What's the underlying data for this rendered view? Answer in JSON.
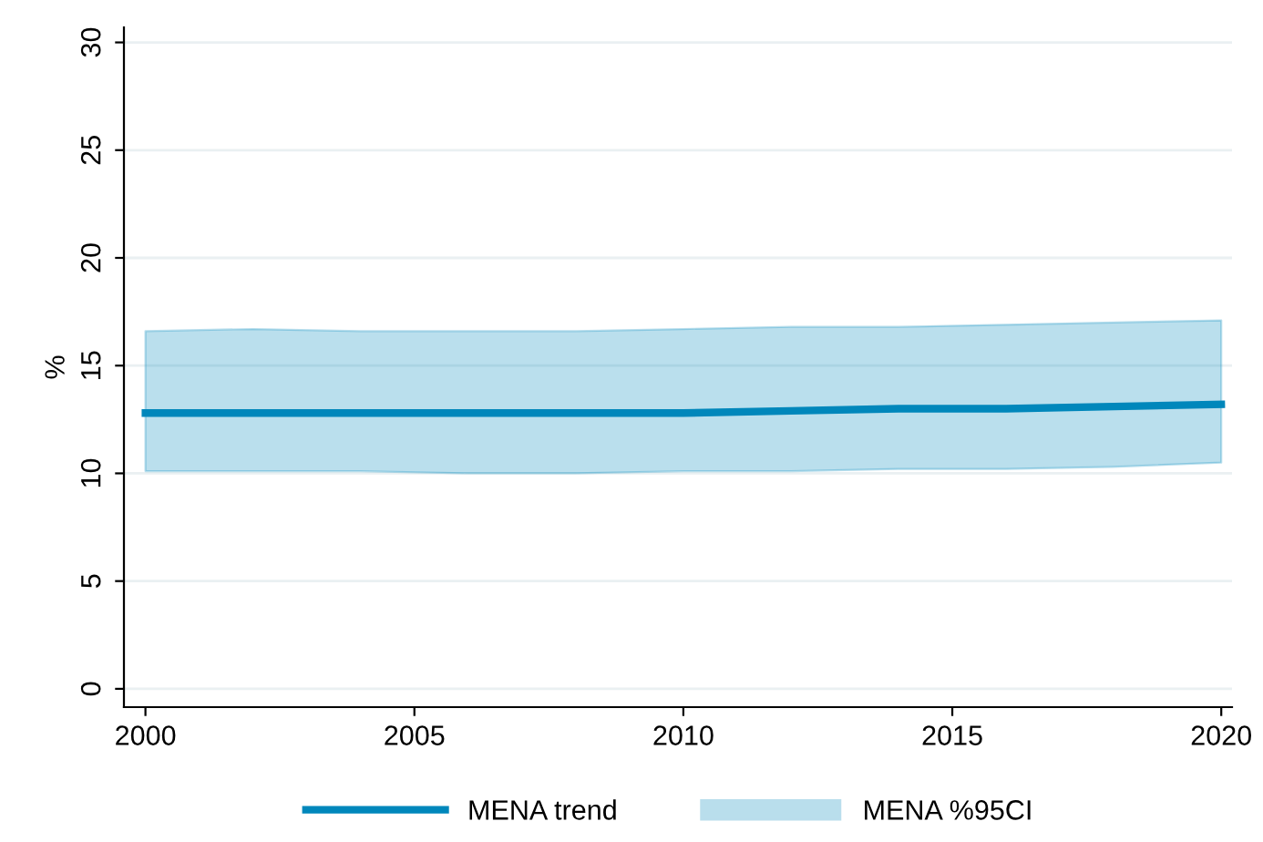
{
  "chart_data": {
    "type": "line",
    "ylabel": "%",
    "x": [
      2000,
      2002,
      2004,
      2006,
      2008,
      2010,
      2012,
      2014,
      2016,
      2018,
      2020
    ],
    "series": [
      {
        "name": "MENA trend",
        "color": "#0087bb",
        "values": [
          12.8,
          12.8,
          12.8,
          12.8,
          12.8,
          12.8,
          12.9,
          13.0,
          13.0,
          13.1,
          13.2
        ],
        "lower": [
          10.1,
          10.1,
          10.1,
          10.0,
          10.0,
          10.1,
          10.1,
          10.2,
          10.2,
          10.3,
          10.5
        ],
        "upper": [
          16.6,
          16.7,
          16.6,
          16.6,
          16.6,
          16.7,
          16.8,
          16.8,
          16.9,
          17.0,
          17.1
        ]
      }
    ],
    "annotations": [
      "MENA %95CI"
    ],
    "xlim": [
      1999.6,
      2020.2
    ],
    "xticks": [
      2000,
      2005,
      2010,
      2015,
      2020
    ],
    "ylim": [
      -0.85,
      30.7
    ],
    "yticks": [
      0,
      5,
      10,
      15,
      20,
      25,
      30
    ],
    "grid": "y",
    "legend": "bottom"
  }
}
